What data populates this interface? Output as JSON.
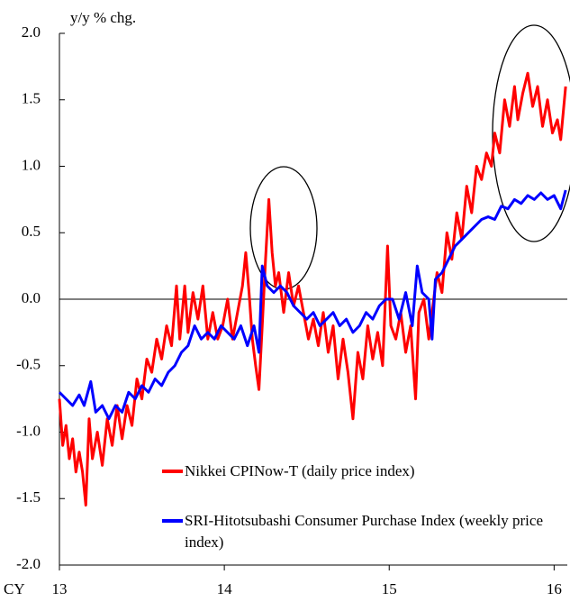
{
  "chart_data": {
    "type": "line",
    "y_label": "y/y % chg.",
    "x_label": "CY",
    "xlim": [
      13,
      16.08
    ],
    "xticks": [
      13,
      14,
      15,
      16
    ],
    "ylim": [
      -2,
      2
    ],
    "yticks": [
      {
        "value": -2,
        "label": "-2.0"
      },
      {
        "value": -1.5,
        "label": "-1.5"
      },
      {
        "value": -1,
        "label": "-1.0"
      },
      {
        "value": -0.5,
        "label": "-0.5"
      },
      {
        "value": 0,
        "label": "0.0"
      },
      {
        "value": 0.5,
        "label": "0.5"
      },
      {
        "value": 1,
        "label": "1.0"
      },
      {
        "value": 1.5,
        "label": "1.5"
      },
      {
        "value": 2,
        "label": "2.0"
      }
    ],
    "zero_line": true,
    "series": [
      {
        "name": "Nikkei CPINow-T (daily price index)",
        "color": "#ff0000",
        "x": [
          13.0,
          13.02,
          13.04,
          13.06,
          13.08,
          13.1,
          13.12,
          13.14,
          13.16,
          13.18,
          13.2,
          13.23,
          13.26,
          13.29,
          13.32,
          13.35,
          13.38,
          13.41,
          13.44,
          13.47,
          13.5,
          13.53,
          13.56,
          13.59,
          13.62,
          13.65,
          13.68,
          13.71,
          13.73,
          13.76,
          13.78,
          13.81,
          13.84,
          13.87,
          13.9,
          13.93,
          13.96,
          13.99,
          14.02,
          14.05,
          14.08,
          14.11,
          14.13,
          14.15,
          14.17,
          14.19,
          14.21,
          14.23,
          14.25,
          14.27,
          14.29,
          14.31,
          14.33,
          14.36,
          14.39,
          14.42,
          14.45,
          14.48,
          14.51,
          14.54,
          14.57,
          14.6,
          14.63,
          14.66,
          14.69,
          14.72,
          14.75,
          14.78,
          14.81,
          14.84,
          14.87,
          14.9,
          14.93,
          14.96,
          14.99,
          15.01,
          15.04,
          15.07,
          15.1,
          15.13,
          15.16,
          15.18,
          15.21,
          15.24,
          15.26,
          15.29,
          15.32,
          15.35,
          15.38,
          15.41,
          15.44,
          15.47,
          15.5,
          15.53,
          15.56,
          15.59,
          15.62,
          15.64,
          15.67,
          15.7,
          15.73,
          15.76,
          15.78,
          15.81,
          15.84,
          15.87,
          15.9,
          15.93,
          15.96,
          15.99,
          16.02,
          16.04,
          16.07
        ],
        "values": [
          -0.75,
          -1.1,
          -0.95,
          -1.2,
          -1.05,
          -1.3,
          -1.15,
          -1.3,
          -1.55,
          -0.9,
          -1.2,
          -1.0,
          -1.25,
          -0.9,
          -1.1,
          -0.8,
          -1.05,
          -0.8,
          -0.95,
          -0.6,
          -0.75,
          -0.45,
          -0.55,
          -0.3,
          -0.45,
          -0.2,
          -0.35,
          0.1,
          -0.3,
          0.1,
          -0.25,
          0.05,
          -0.15,
          0.1,
          -0.3,
          -0.1,
          -0.3,
          -0.2,
          0.0,
          -0.3,
          -0.1,
          0.1,
          0.35,
          0.05,
          -0.3,
          -0.5,
          -0.68,
          -0.2,
          0.3,
          0.75,
          0.35,
          0.1,
          0.2,
          -0.1,
          0.2,
          -0.05,
          0.1,
          -0.1,
          -0.3,
          -0.15,
          -0.35,
          -0.1,
          -0.4,
          -0.2,
          -0.6,
          -0.3,
          -0.55,
          -0.9,
          -0.4,
          -0.6,
          -0.2,
          -0.45,
          -0.25,
          -0.5,
          0.4,
          -0.2,
          -0.3,
          -0.1,
          -0.4,
          -0.2,
          -0.75,
          -0.1,
          0.0,
          -0.3,
          -0.1,
          0.2,
          0.05,
          0.5,
          0.3,
          0.65,
          0.45,
          0.85,
          0.65,
          1.0,
          0.9,
          1.1,
          1.0,
          1.25,
          1.1,
          1.5,
          1.3,
          1.6,
          1.35,
          1.55,
          1.7,
          1.45,
          1.6,
          1.3,
          1.5,
          1.25,
          1.35,
          1.2,
          1.6
        ]
      },
      {
        "name": "SRI-Hitotsubashi Consumer Purchase Index (weekly price index)",
        "color": "#0000ff",
        "x": [
          13.0,
          13.04,
          13.08,
          13.12,
          13.15,
          13.19,
          13.22,
          13.26,
          13.3,
          13.34,
          13.38,
          13.42,
          13.46,
          13.5,
          13.54,
          13.58,
          13.62,
          13.66,
          13.7,
          13.74,
          13.78,
          13.82,
          13.86,
          13.9,
          13.94,
          13.98,
          14.02,
          14.06,
          14.1,
          14.14,
          14.18,
          14.21,
          14.23,
          14.26,
          14.3,
          14.34,
          14.38,
          14.42,
          14.46,
          14.5,
          14.54,
          14.58,
          14.62,
          14.66,
          14.7,
          14.74,
          14.78,
          14.82,
          14.86,
          14.9,
          14.94,
          14.98,
          15.02,
          15.06,
          15.1,
          15.14,
          15.17,
          15.2,
          15.24,
          15.26,
          15.28,
          15.32,
          15.36,
          15.4,
          15.44,
          15.48,
          15.52,
          15.56,
          15.6,
          15.64,
          15.68,
          15.72,
          15.76,
          15.8,
          15.84,
          15.88,
          15.92,
          15.96,
          16.0,
          16.04,
          16.07
        ],
        "values": [
          -0.7,
          -0.75,
          -0.8,
          -0.72,
          -0.8,
          -0.62,
          -0.85,
          -0.8,
          -0.9,
          -0.8,
          -0.85,
          -0.7,
          -0.75,
          -0.65,
          -0.7,
          -0.6,
          -0.65,
          -0.55,
          -0.5,
          -0.4,
          -0.35,
          -0.2,
          -0.3,
          -0.25,
          -0.3,
          -0.2,
          -0.25,
          -0.3,
          -0.2,
          -0.35,
          -0.2,
          -0.4,
          0.25,
          0.1,
          0.05,
          0.1,
          0.05,
          -0.05,
          -0.1,
          -0.15,
          -0.1,
          -0.2,
          -0.15,
          -0.1,
          -0.2,
          -0.15,
          -0.25,
          -0.2,
          -0.1,
          -0.15,
          -0.05,
          0.0,
          0.0,
          -0.15,
          0.05,
          -0.2,
          0.25,
          0.05,
          0.0,
          -0.3,
          0.15,
          0.2,
          0.3,
          0.4,
          0.45,
          0.5,
          0.55,
          0.6,
          0.62,
          0.6,
          0.7,
          0.68,
          0.75,
          0.72,
          0.78,
          0.75,
          0.8,
          0.75,
          0.78,
          0.68,
          0.82
        ]
      }
    ]
  }
}
